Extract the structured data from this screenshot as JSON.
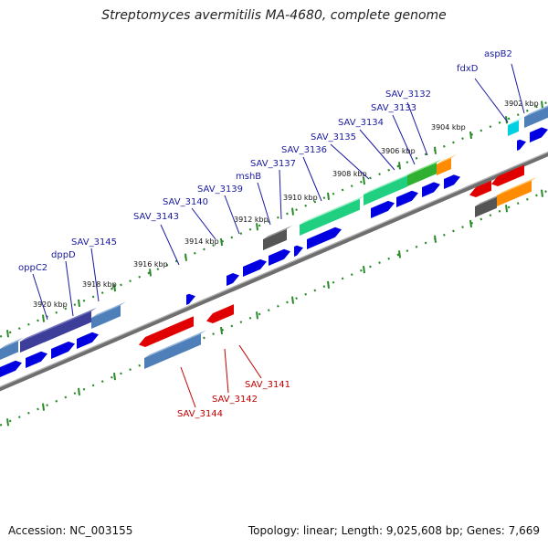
{
  "title": "Streptomyces avermitilis MA-4680, complete genome",
  "footer": {
    "accession": "Accession: NC_003155",
    "stats": "Topology: linear; Length: 9,025,608 bp; Genes: 7,669"
  },
  "kbp_labels": [
    "3902 kbp",
    "3904 kbp",
    "3906 kbp",
    "3908 kbp",
    "3910 kbp",
    "3912 kbp",
    "3914 kbp",
    "3916 kbp",
    "3918 kbp",
    "3920 kbp"
  ],
  "genes_forward": [
    "aspB2",
    "fdxD",
    "SAV_3132",
    "SAV_3133",
    "SAV_3134",
    "SAV_3135",
    "SAV_3136",
    "SAV_3137",
    "mshB",
    "SAV_3139",
    "SAV_3140",
    "SAV_3143",
    "SAV_3145",
    "dppD",
    "oppC2"
  ],
  "genes_reverse": [
    "SAV_3141",
    "SAV_3142",
    "SAV_3144"
  ],
  "colors": {
    "forward_label": "#1a1aa0",
    "reverse_label": "#c00000",
    "cds_forward": "#0000e0",
    "cds_reverse": "#e00000",
    "tick": "#2a8a2a",
    "backbone": "#777777"
  }
}
